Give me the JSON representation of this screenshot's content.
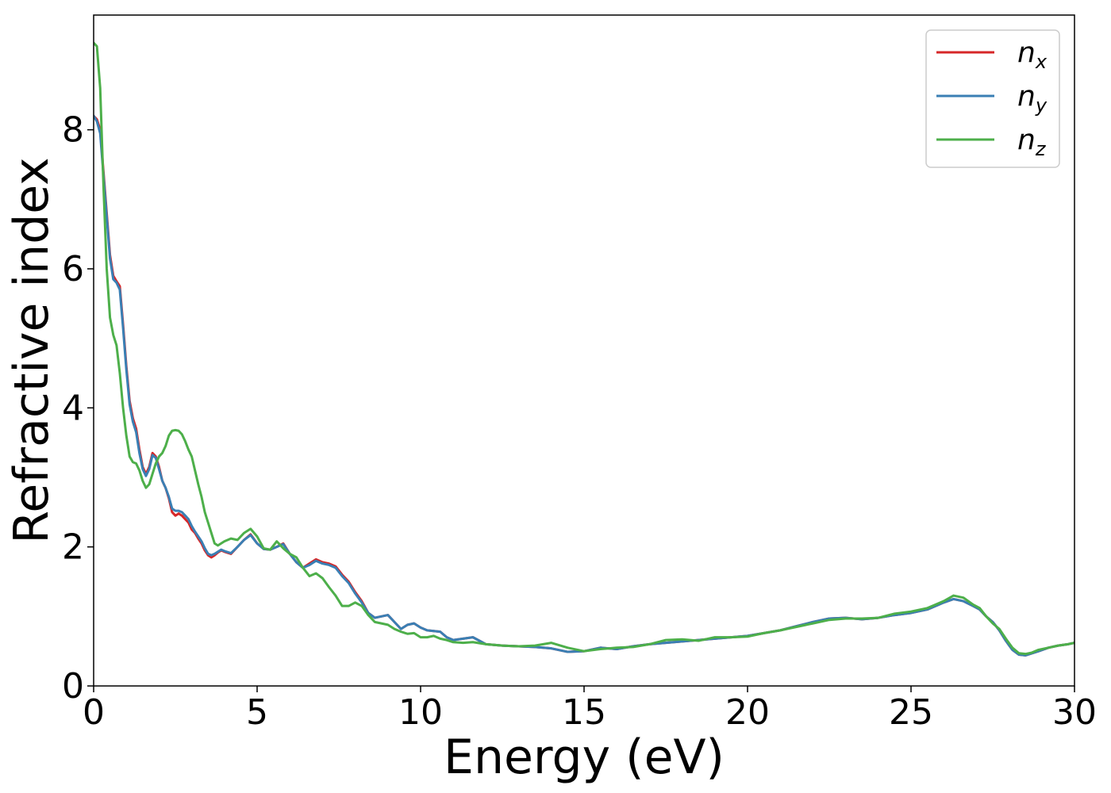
{
  "chart_data": {
    "type": "line",
    "title": "",
    "xlabel": "Energy (eV)",
    "ylabel": "Refractive index",
    "xlim": [
      0,
      30
    ],
    "ylim": [
      0,
      9.65
    ],
    "xticks": [
      0,
      5,
      10,
      15,
      20,
      25,
      30
    ],
    "yticks": [
      0,
      2,
      4,
      6,
      8
    ],
    "grid": false,
    "legend_position": "top-right",
    "series": [
      {
        "name": "n_x",
        "label_base": "n",
        "label_sub": "x",
        "color": "#d62728",
        "x": [
          0.0,
          0.1,
          0.2,
          0.3,
          0.4,
          0.5,
          0.6,
          0.7,
          0.8,
          0.9,
          1.0,
          1.1,
          1.2,
          1.3,
          1.4,
          1.5,
          1.6,
          1.7,
          1.8,
          1.9,
          2.0,
          2.1,
          2.2,
          2.3,
          2.4,
          2.5,
          2.6,
          2.7,
          2.8,
          2.9,
          3.0,
          3.1,
          3.2,
          3.3,
          3.4,
          3.5,
          3.6,
          3.7,
          3.8,
          3.9,
          4.0,
          4.2,
          4.4,
          4.6,
          4.8,
          5.0,
          5.2,
          5.4,
          5.6,
          5.8,
          6.0,
          6.2,
          6.4,
          6.6,
          6.8,
          7.0,
          7.2,
          7.4,
          7.6,
          7.8,
          8.0,
          8.2,
          8.4,
          8.6,
          8.8,
          9.0,
          9.2,
          9.4,
          9.6,
          9.8,
          10.0,
          10.2,
          10.4,
          10.6,
          10.8,
          11.0,
          11.3,
          11.6,
          12.0,
          12.5,
          13.0,
          13.5,
          14.0,
          14.5,
          15.0,
          15.5,
          16.0,
          16.5,
          17.0,
          17.5,
          18.0,
          18.5,
          19.0,
          19.5,
          20.0,
          20.5,
          21.0,
          21.5,
          22.0,
          22.5,
          23.0,
          23.5,
          24.0,
          24.5,
          25.0,
          25.5,
          26.0,
          26.3,
          26.6,
          26.9,
          27.1,
          27.3,
          27.5,
          27.7,
          27.9,
          28.1,
          28.3,
          28.5,
          28.7,
          28.9,
          29.2,
          29.5,
          29.8,
          30.0
        ],
        "values": [
          8.2,
          8.15,
          8.0,
          7.4,
          6.8,
          6.2,
          5.9,
          5.82,
          5.75,
          5.2,
          4.6,
          4.1,
          3.85,
          3.7,
          3.4,
          3.15,
          3.05,
          3.15,
          3.35,
          3.3,
          3.15,
          2.95,
          2.85,
          2.7,
          2.5,
          2.45,
          2.48,
          2.45,
          2.4,
          2.35,
          2.25,
          2.2,
          2.12,
          2.05,
          1.95,
          1.88,
          1.85,
          1.88,
          1.92,
          1.95,
          1.93,
          1.9,
          2.0,
          2.1,
          2.18,
          2.05,
          1.97,
          1.96,
          2.0,
          2.05,
          1.9,
          1.78,
          1.7,
          1.76,
          1.82,
          1.78,
          1.76,
          1.72,
          1.6,
          1.5,
          1.35,
          1.22,
          1.05,
          0.98,
          1.0,
          1.02,
          0.92,
          0.82,
          0.88,
          0.9,
          0.84,
          0.8,
          0.79,
          0.78,
          0.7,
          0.66,
          0.68,
          0.7,
          0.6,
          0.58,
          0.57,
          0.56,
          0.54,
          0.49,
          0.5,
          0.55,
          0.53,
          0.57,
          0.6,
          0.62,
          0.64,
          0.66,
          0.68,
          0.7,
          0.72,
          0.76,
          0.8,
          0.86,
          0.92,
          0.97,
          0.98,
          0.96,
          0.98,
          1.02,
          1.05,
          1.1,
          1.2,
          1.25,
          1.22,
          1.15,
          1.1,
          1.0,
          0.92,
          0.8,
          0.65,
          0.52,
          0.45,
          0.44,
          0.47,
          0.5,
          0.55,
          0.58,
          0.6,
          0.62
        ]
      },
      {
        "name": "n_y",
        "label_base": "n",
        "label_sub": "y",
        "color": "#3a7fb4",
        "x": [
          0.0,
          0.1,
          0.2,
          0.3,
          0.4,
          0.5,
          0.6,
          0.7,
          0.8,
          0.9,
          1.0,
          1.1,
          1.2,
          1.3,
          1.4,
          1.5,
          1.6,
          1.7,
          1.8,
          1.9,
          2.0,
          2.1,
          2.2,
          2.3,
          2.4,
          2.5,
          2.6,
          2.7,
          2.8,
          2.9,
          3.0,
          3.1,
          3.2,
          3.3,
          3.4,
          3.5,
          3.6,
          3.7,
          3.8,
          3.9,
          4.0,
          4.2,
          4.4,
          4.6,
          4.8,
          5.0,
          5.2,
          5.4,
          5.6,
          5.8,
          6.0,
          6.2,
          6.4,
          6.6,
          6.8,
          7.0,
          7.2,
          7.4,
          7.6,
          7.8,
          8.0,
          8.2,
          8.4,
          8.6,
          8.8,
          9.0,
          9.2,
          9.4,
          9.6,
          9.8,
          10.0,
          10.2,
          10.4,
          10.6,
          10.8,
          11.0,
          11.3,
          11.6,
          12.0,
          12.5,
          13.0,
          13.5,
          14.0,
          14.5,
          15.0,
          15.5,
          16.0,
          16.5,
          17.0,
          17.5,
          18.0,
          18.5,
          19.0,
          19.5,
          20.0,
          20.5,
          21.0,
          21.5,
          22.0,
          22.5,
          23.0,
          23.5,
          24.0,
          24.5,
          25.0,
          25.5,
          26.0,
          26.3,
          26.6,
          26.9,
          27.1,
          27.3,
          27.5,
          27.7,
          27.9,
          28.1,
          28.3,
          28.5,
          28.7,
          28.9,
          29.2,
          29.5,
          29.8,
          30.0
        ],
        "values": [
          8.2,
          8.12,
          7.95,
          7.35,
          6.75,
          6.15,
          5.85,
          5.8,
          5.7,
          5.15,
          4.55,
          4.05,
          3.8,
          3.65,
          3.35,
          3.12,
          3.02,
          3.12,
          3.32,
          3.28,
          3.12,
          2.95,
          2.85,
          2.72,
          2.55,
          2.52,
          2.52,
          2.5,
          2.45,
          2.4,
          2.3,
          2.22,
          2.15,
          2.08,
          1.98,
          1.9,
          1.88,
          1.9,
          1.93,
          1.96,
          1.94,
          1.91,
          2.0,
          2.1,
          2.17,
          2.05,
          1.97,
          1.96,
          2.0,
          2.04,
          1.9,
          1.78,
          1.7,
          1.74,
          1.8,
          1.76,
          1.74,
          1.7,
          1.58,
          1.48,
          1.33,
          1.2,
          1.05,
          0.98,
          1.0,
          1.02,
          0.92,
          0.82,
          0.88,
          0.9,
          0.84,
          0.8,
          0.79,
          0.78,
          0.7,
          0.66,
          0.68,
          0.7,
          0.6,
          0.58,
          0.57,
          0.56,
          0.54,
          0.49,
          0.5,
          0.55,
          0.53,
          0.57,
          0.6,
          0.62,
          0.64,
          0.66,
          0.68,
          0.7,
          0.72,
          0.76,
          0.8,
          0.86,
          0.92,
          0.97,
          0.98,
          0.96,
          0.98,
          1.02,
          1.05,
          1.1,
          1.2,
          1.25,
          1.22,
          1.15,
          1.1,
          1.0,
          0.92,
          0.8,
          0.65,
          0.52,
          0.45,
          0.44,
          0.47,
          0.5,
          0.55,
          0.58,
          0.6,
          0.62
        ]
      },
      {
        "name": "n_z",
        "label_base": "n",
        "label_sub": "z",
        "color": "#4daf4a",
        "x": [
          0.0,
          0.1,
          0.2,
          0.3,
          0.4,
          0.5,
          0.6,
          0.7,
          0.8,
          0.9,
          1.0,
          1.1,
          1.2,
          1.3,
          1.4,
          1.5,
          1.6,
          1.7,
          1.8,
          1.9,
          2.0,
          2.1,
          2.2,
          2.3,
          2.4,
          2.5,
          2.6,
          2.7,
          2.8,
          2.9,
          3.0,
          3.1,
          3.2,
          3.3,
          3.4,
          3.5,
          3.6,
          3.7,
          3.8,
          3.9,
          4.0,
          4.2,
          4.4,
          4.6,
          4.8,
          5.0,
          5.2,
          5.4,
          5.6,
          5.8,
          6.0,
          6.2,
          6.4,
          6.6,
          6.8,
          7.0,
          7.2,
          7.4,
          7.6,
          7.8,
          8.0,
          8.2,
          8.4,
          8.6,
          8.8,
          9.0,
          9.2,
          9.4,
          9.6,
          9.8,
          10.0,
          10.2,
          10.4,
          10.6,
          10.8,
          11.0,
          11.3,
          11.6,
          12.0,
          12.5,
          13.0,
          13.5,
          14.0,
          14.5,
          15.0,
          15.5,
          16.0,
          16.5,
          17.0,
          17.5,
          18.0,
          18.5,
          19.0,
          19.5,
          20.0,
          20.5,
          21.0,
          21.5,
          22.0,
          22.5,
          23.0,
          23.5,
          24.0,
          24.5,
          25.0,
          25.5,
          26.0,
          26.3,
          26.6,
          26.9,
          27.1,
          27.3,
          27.5,
          27.7,
          27.9,
          28.1,
          28.3,
          28.5,
          28.7,
          28.9,
          29.2,
          29.5,
          29.8,
          30.0
        ],
        "values": [
          9.25,
          9.2,
          8.6,
          7.2,
          6.0,
          5.3,
          5.05,
          4.9,
          4.5,
          4.0,
          3.6,
          3.3,
          3.22,
          3.2,
          3.1,
          2.95,
          2.85,
          2.9,
          3.05,
          3.2,
          3.3,
          3.35,
          3.45,
          3.6,
          3.67,
          3.68,
          3.67,
          3.62,
          3.52,
          3.4,
          3.3,
          3.1,
          2.9,
          2.72,
          2.5,
          2.35,
          2.2,
          2.05,
          2.02,
          2.05,
          2.08,
          2.12,
          2.1,
          2.2,
          2.26,
          2.15,
          1.98,
          1.96,
          2.08,
          1.98,
          1.9,
          1.85,
          1.7,
          1.58,
          1.62,
          1.55,
          1.42,
          1.3,
          1.15,
          1.15,
          1.2,
          1.15,
          1.02,
          0.92,
          0.9,
          0.88,
          0.82,
          0.78,
          0.75,
          0.76,
          0.7,
          0.7,
          0.72,
          0.68,
          0.66,
          0.63,
          0.62,
          0.63,
          0.6,
          0.58,
          0.57,
          0.58,
          0.62,
          0.55,
          0.5,
          0.53,
          0.55,
          0.56,
          0.6,
          0.66,
          0.67,
          0.65,
          0.7,
          0.7,
          0.71,
          0.76,
          0.8,
          0.85,
          0.9,
          0.95,
          0.97,
          0.97,
          0.98,
          1.04,
          1.07,
          1.12,
          1.22,
          1.3,
          1.27,
          1.17,
          1.12,
          1.0,
          0.9,
          0.82,
          0.68,
          0.55,
          0.47,
          0.46,
          0.48,
          0.52,
          0.55,
          0.58,
          0.6,
          0.62
        ]
      }
    ]
  }
}
